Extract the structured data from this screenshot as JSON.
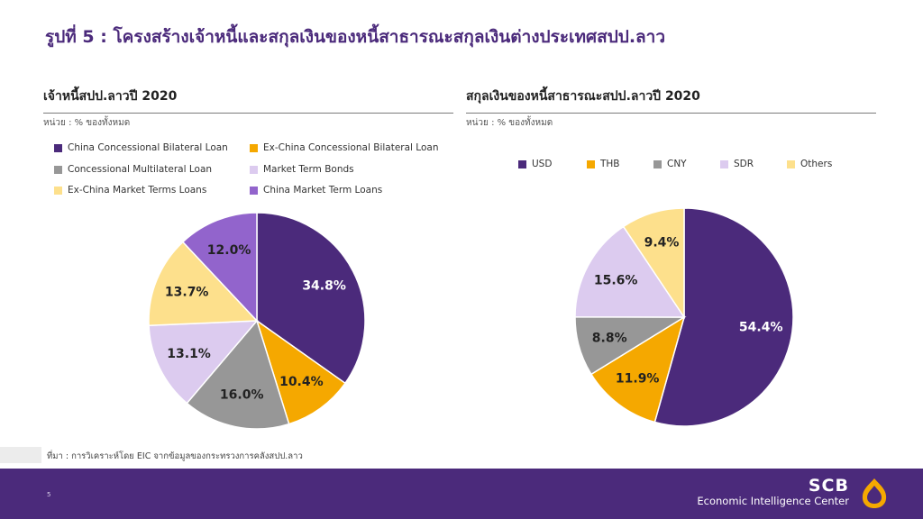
{
  "title": "รูปที่ 5 : โครงสร้างเจ้าหนี้และสกุลเงินของหนี้สาธารณะสกุลเงินต่างประเทศสปป.ลาว",
  "colors": {
    "purple_dark": "#4b2a7b",
    "orange": "#f5a800",
    "gray": "#979797",
    "lavender": "#dccbef",
    "pale_yellow": "#fde08c",
    "purple_medium": "#9264cc",
    "footer_bg": "#4b2a7b",
    "logo_gold": "#f5a800"
  },
  "chart_data": [
    {
      "type": "pie",
      "title": "เจ้าหนี้สปป.ลาวปี 2020",
      "unit": "หน่วย : % ของทั้งหมด",
      "legend": [
        {
          "label": "China Concessional Bilateral Loan",
          "color": "#4b2a7b"
        },
        {
          "label": "Ex-China Concessional Bilateral Loan",
          "color": "#f5a800"
        },
        {
          "label": "Concessional Multilateral Loan",
          "color": "#979797"
        },
        {
          "label": "Market Term Bonds",
          "color": "#dccbef"
        },
        {
          "label": "Ex-China Market Terms Loans",
          "color": "#fde08c"
        },
        {
          "label": "China Market Term Loans",
          "color": "#9264cc"
        }
      ],
      "slices": [
        {
          "label": "China Concessional Bilateral Loan",
          "value": 34.8,
          "text": "34.8%",
          "color": "#4b2a7b",
          "label_color": "#ffffff"
        },
        {
          "label": "Ex-China Concessional Bilateral Loan",
          "value": 10.4,
          "text": "10.4%",
          "color": "#f5a800",
          "label_color": "#222222"
        },
        {
          "label": "Concessional Multilateral Loan",
          "value": 16.0,
          "text": "16.0%",
          "color": "#979797",
          "label_color": "#222222"
        },
        {
          "label": "Market Term Bonds",
          "value": 13.1,
          "text": "13.1%",
          "color": "#dccbef",
          "label_color": "#222222"
        },
        {
          "label": "Ex-China Market Terms Loans",
          "value": 13.7,
          "text": "13.7%",
          "color": "#fde08c",
          "label_color": "#222222"
        },
        {
          "label": "China Market Term Loans",
          "value": 12.0,
          "text": "12.0%",
          "color": "#9264cc",
          "label_color": "#222222"
        }
      ]
    },
    {
      "type": "pie",
      "title": "สกุลเงินของหนี้สาธารณะสปป.ลาวปี 2020",
      "unit": "หน่วย : % ของทั้งหมด",
      "legend": [
        {
          "label": "USD",
          "color": "#4b2a7b"
        },
        {
          "label": "THB",
          "color": "#f5a800"
        },
        {
          "label": "CNY",
          "color": "#979797"
        },
        {
          "label": "SDR",
          "color": "#dccbef"
        },
        {
          "label": "Others",
          "color": "#fde08c"
        }
      ],
      "slices": [
        {
          "label": "USD",
          "value": 54.4,
          "text": "54.4%",
          "color": "#4b2a7b",
          "label_color": "#ffffff"
        },
        {
          "label": "THB",
          "value": 11.9,
          "text": "11.9%",
          "color": "#f5a800",
          "label_color": "#222222"
        },
        {
          "label": "CNY",
          "value": 8.8,
          "text": "8.8%",
          "color": "#979797",
          "label_color": "#222222"
        },
        {
          "label": "SDR",
          "value": 15.6,
          "text": "15.6%",
          "color": "#dccbef",
          "label_color": "#222222"
        },
        {
          "label": "Others",
          "value": 9.4,
          "text": "9.4%",
          "color": "#fde08c",
          "label_color": "#222222"
        }
      ]
    }
  ],
  "source": "ที่มา : การวิเคราะห์โดย EIC จากข้อมูลของกระทรวงการคลังสปป.ลาว",
  "footer": {
    "page_number": "5",
    "brand_name": "SCB",
    "brand_subtitle": "Economic Intelligence Center",
    "logo_icon": "scb-logo-icon"
  }
}
